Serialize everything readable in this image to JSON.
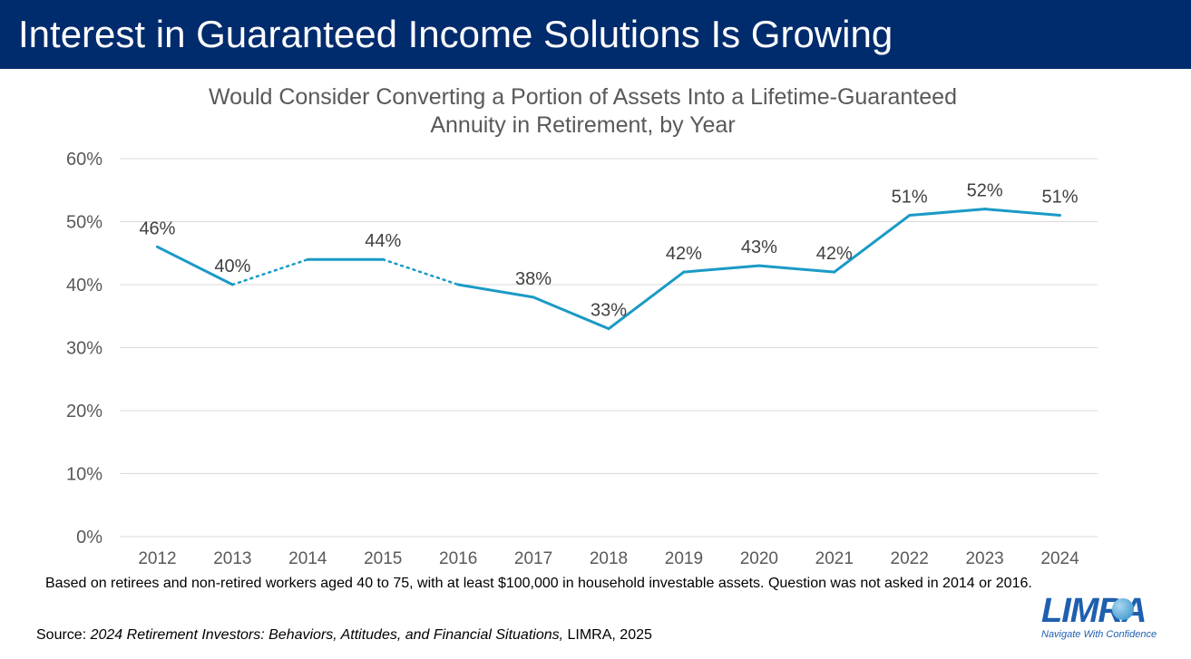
{
  "slide": {
    "title": "Interest in Guaranteed Income Solutions Is Growing",
    "footnote": "Based on retirees and non-retired workers aged 40 to 75, with at least $100,000 in household investable assets. Question was not asked in 2014 or 2016.",
    "source_prefix": "Source: ",
    "source_title": "2024 Retirement Investors: Behaviors, Attitudes, and Financial Situations,",
    "source_suffix": " LIMRA, 2025",
    "logo_text": "LIMRA",
    "logo_tagline": "Navigate With Confidence"
  },
  "colors": {
    "header": "#002b6d",
    "series": "#1a9ac6",
    "text": "#595959",
    "grid": "#d9d9d9"
  },
  "chart_data": {
    "type": "line",
    "title": "Would Consider Converting a Portion of Assets Into a Lifetime-Guaranteed",
    "subtitle": "Annuity in Retirement, by Year",
    "categories": [
      "2012",
      "2013",
      "2014",
      "2015",
      "2016",
      "2017",
      "2018",
      "2019",
      "2020",
      "2021",
      "2022",
      "2023",
      "2024"
    ],
    "series": [
      {
        "values": [
          46,
          40,
          44,
          44,
          40,
          38,
          33,
          42,
          43,
          42,
          51,
          52,
          51
        ],
        "data_labels": [
          "46%",
          "40%",
          "",
          "44%",
          "",
          "38%",
          "33%",
          "42%",
          "43%",
          "42%",
          "51%",
          "52%",
          "51%"
        ],
        "line_styles": [
          "solid",
          "dotted",
          "solid",
          "dotted",
          "solid",
          "solid",
          "solid",
          "solid",
          "solid",
          "solid",
          "solid",
          "solid"
        ]
      }
    ],
    "ylim": [
      0,
      60
    ],
    "yticks": [
      0,
      10,
      20,
      30,
      40,
      50,
      60
    ],
    "ytick_labels": [
      "0%",
      "10%",
      "20%",
      "30%",
      "40%",
      "50%",
      "60%"
    ],
    "grid": true,
    "legend": "none"
  }
}
